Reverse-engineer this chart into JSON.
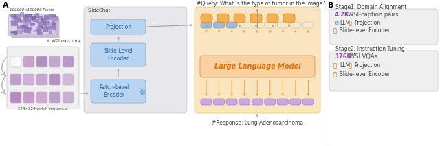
{
  "bg_color": "#ffffff",
  "query_text": "#Query: What is the type of tumor in the image?",
  "response_text": "#Response: Lung Adenocarcinoma",
  "wsi_label": "100000×100000 Pixels",
  "wsi_patching": "WSI patching",
  "patch_sequence": "224×224 patch sequence",
  "slidechat_label": "SlideChat",
  "projection_label": "Projection",
  "slide_encoder_label": "Slide-Level\nEncoder",
  "patch_encoder_label": "Patch-Level\nEncoder",
  "llm_label": "Large Language Model",
  "stage1_label": "Stage1: Domain Alignment",
  "stage1_data": "4.2K  WSI-caption pairs",
  "stage2_label": "Stage2: Instruction Tuning",
  "stage2_data": "176K  WSI VQAs",
  "slidechat_box": "#e8e8ec",
  "llm_outer_box": "#fae5c0",
  "llm_inner_box": "#fad0a0",
  "encoder_box": "#b8d4f0",
  "token_blue": "#a0b8e8",
  "token_cream": "#f5e8d0",
  "token_purple": "#c8a8e0",
  "token_orange": "#f0a030",
  "arrow_orange": "#f0a030",
  "arrow_gray": "#a0a0a0",
  "stage_box": "#efefef",
  "stage1_color": "#8844bb",
  "stage2_color": "#8844bb",
  "encoder_text": "#2060a0",
  "llm_text": "#e07010"
}
